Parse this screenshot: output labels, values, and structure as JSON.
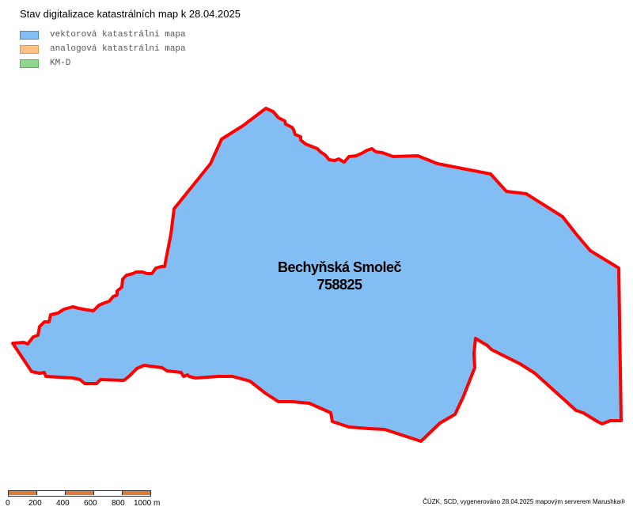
{
  "title": "Stav digitalizace katastrálních map k 28.04.2025",
  "legend": [
    {
      "label": "vektorová katastrální mapa",
      "color": "#82bdf4",
      "border": "#3d8ad8"
    },
    {
      "label": "analogová katastrální mapa",
      "color": "#ffc184",
      "border": "#e09a50"
    },
    {
      "label": "KM-D",
      "color": "#90d68c",
      "border": "#5cb35a"
    }
  ],
  "parcel": {
    "name": "Bechyňská Smoleč",
    "code": "758825",
    "fill": "#82bdf4",
    "outline": "#ff0000"
  },
  "scalebar": {
    "ticks": [
      "0",
      "200",
      "400",
      "600",
      "800",
      "1000 m"
    ],
    "colors": [
      "#e07a3a",
      "#ffffff",
      "#e07a3a",
      "#ffffff",
      "#e07a3a"
    ]
  },
  "credit": "ČÚZK, SCD, vygenerováno 28.04.2025 mapovým serverem Marushka®"
}
